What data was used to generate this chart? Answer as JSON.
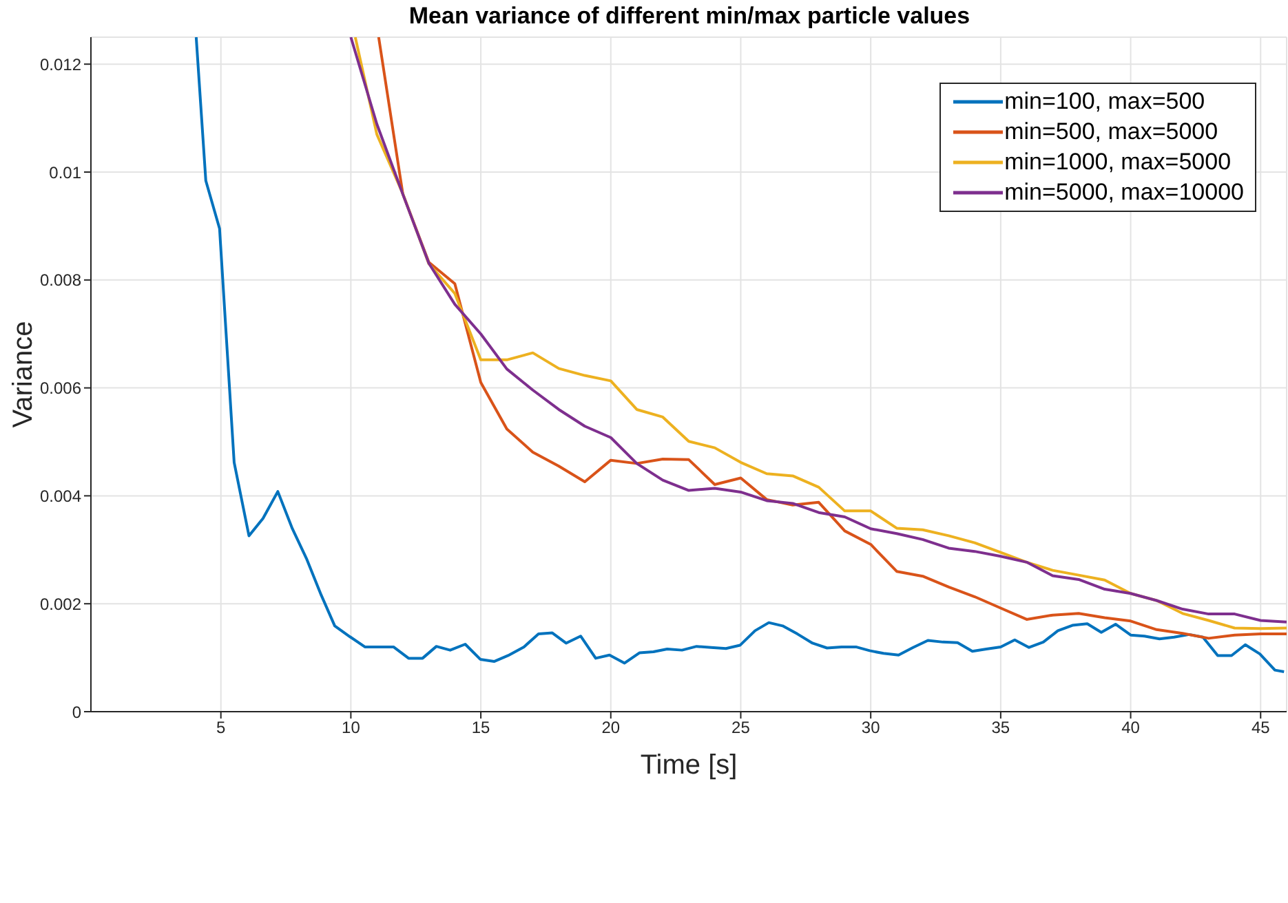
{
  "chart_data": {
    "type": "line",
    "title": "Mean variance of different min/max particle values",
    "xlabel": "Time [s]",
    "ylabel": "Variance",
    "xlim": [
      0,
      46
    ],
    "xticks": [
      5,
      10,
      15,
      20,
      25,
      30,
      35,
      40,
      45
    ],
    "ylim": [
      0,
      0.0125
    ],
    "yticks": [
      0,
      0.002,
      0.004,
      0.006,
      0.008,
      0.01,
      0.012
    ],
    "grid": true,
    "legend": "top right",
    "marker": "none",
    "line_style": "solid",
    "series": [
      {
        "name": "min=100, max=500",
        "color": "#0072bd",
        "x": [
          4.05,
          4.42,
          4.95,
          5.51,
          6.08,
          6.62,
          7.19,
          7.75,
          8.29,
          8.86,
          9.38,
          9.96,
          10.54,
          11.1,
          11.64,
          12.22,
          12.76,
          13.29,
          13.82,
          14.4,
          14.98,
          15.51,
          16.05,
          16.66,
          17.22,
          17.75,
          18.28,
          18.84,
          19.42,
          19.95,
          20.53,
          21.1,
          21.64,
          22.17,
          22.74,
          23.3,
          23.86,
          24.43,
          24.97,
          25.55,
          26.08,
          26.61,
          27.18,
          27.76,
          28.32,
          28.88,
          29.43,
          29.96,
          30.49,
          31.07,
          31.63,
          32.2,
          32.78,
          33.34,
          33.91,
          34.45,
          35.0,
          35.54,
          36.09,
          36.64,
          37.2,
          37.76,
          38.33,
          38.87,
          39.42,
          40.0,
          40.53,
          41.11,
          41.67,
          42.25,
          42.78,
          43.35,
          43.88,
          44.41,
          44.97,
          45.55,
          45.9
        ],
        "values": [
          0.0125,
          0.00984,
          0.00895,
          0.00462,
          0.00326,
          0.00358,
          0.00408,
          0.00339,
          0.00284,
          0.00216,
          0.00159,
          0.00139,
          0.0012,
          0.0012,
          0.0012,
          0.00099,
          0.00099,
          0.00121,
          0.00114,
          0.00125,
          0.00097,
          0.00093,
          0.00104,
          0.0012,
          0.00144,
          0.00146,
          0.00127,
          0.0014,
          0.00099,
          0.00105,
          0.0009,
          0.00109,
          0.00111,
          0.00116,
          0.00114,
          0.00121,
          0.00119,
          0.00117,
          0.00123,
          0.0015,
          0.00165,
          0.00159,
          0.00144,
          0.00127,
          0.00118,
          0.0012,
          0.0012,
          0.00113,
          0.00108,
          0.00105,
          0.00119,
          0.00132,
          0.00129,
          0.00128,
          0.00112,
          0.00116,
          0.0012,
          0.00133,
          0.00119,
          0.00129,
          0.0015,
          0.0016,
          0.00163,
          0.00147,
          0.00162,
          0.00142,
          0.0014,
          0.00135,
          0.00138,
          0.00143,
          0.00138,
          0.00104,
          0.00104,
          0.00124,
          0.00107,
          0.00077,
          0.00074
        ]
      },
      {
        "name": "min=500, max=5000",
        "color": "#d95319",
        "x": [
          11.07,
          12,
          13,
          14,
          15,
          16,
          17,
          18,
          19,
          20,
          21,
          22,
          23,
          24,
          25,
          26,
          27,
          28,
          29,
          30,
          31,
          32,
          33,
          34,
          35,
          36,
          37,
          38,
          39,
          40,
          41,
          42,
          43,
          44,
          45,
          46
        ],
        "values": [
          0.0125,
          0.00959,
          0.00833,
          0.00793,
          0.0061,
          0.00524,
          0.00481,
          0.00455,
          0.00426,
          0.00466,
          0.0046,
          0.00468,
          0.00467,
          0.00421,
          0.00433,
          0.00393,
          0.00383,
          0.00388,
          0.00335,
          0.0031,
          0.0026,
          0.00251,
          0.00231,
          0.00213,
          0.00192,
          0.00171,
          0.00179,
          0.00182,
          0.00174,
          0.00168,
          0.00152,
          0.00145,
          0.00136,
          0.00142,
          0.00144,
          0.00144
        ]
      },
      {
        "name": "min=1000, max=5000",
        "color": "#edb120",
        "x": [
          10.17,
          11,
          12,
          13,
          14,
          15,
          16,
          17,
          18,
          19,
          20,
          21,
          22,
          23,
          24,
          25,
          26,
          27,
          28,
          29,
          30,
          31,
          32,
          33,
          34,
          35,
          36,
          37,
          38,
          39,
          40,
          41,
          42,
          43,
          44,
          45,
          46
        ],
        "values": [
          0.0125,
          0.0107,
          0.0096,
          0.0083,
          0.00775,
          0.00652,
          0.00652,
          0.00665,
          0.00636,
          0.00623,
          0.00613,
          0.0056,
          0.00546,
          0.00501,
          0.00489,
          0.00462,
          0.00441,
          0.00437,
          0.00416,
          0.00372,
          0.00372,
          0.0034,
          0.00337,
          0.00326,
          0.00313,
          0.00295,
          0.00277,
          0.00262,
          0.00253,
          0.00244,
          0.00219,
          0.00206,
          0.00182,
          0.00169,
          0.00155,
          0.00154,
          0.00155
        ]
      },
      {
        "name": "min=5000, max=10000",
        "color": "#7e2f8e",
        "x": [
          10,
          11,
          12,
          13,
          14,
          15,
          16,
          17,
          18,
          19,
          20,
          21,
          22,
          23,
          24,
          25,
          26,
          27,
          28,
          29,
          30,
          31,
          32,
          33,
          34,
          35,
          36,
          37,
          38,
          39,
          40,
          41,
          42,
          43,
          44,
          45,
          46
        ],
        "values": [
          0.0125,
          0.01089,
          0.00959,
          0.00831,
          0.00755,
          0.007,
          0.00635,
          0.00596,
          0.0056,
          0.00529,
          0.00508,
          0.0046,
          0.00429,
          0.0041,
          0.00414,
          0.00407,
          0.00391,
          0.00386,
          0.00369,
          0.00361,
          0.00339,
          0.0033,
          0.00319,
          0.00303,
          0.00297,
          0.00288,
          0.00277,
          0.00252,
          0.00245,
          0.00227,
          0.00219,
          0.00206,
          0.0019,
          0.00181,
          0.00181,
          0.00169,
          0.00166
        ]
      }
    ]
  }
}
